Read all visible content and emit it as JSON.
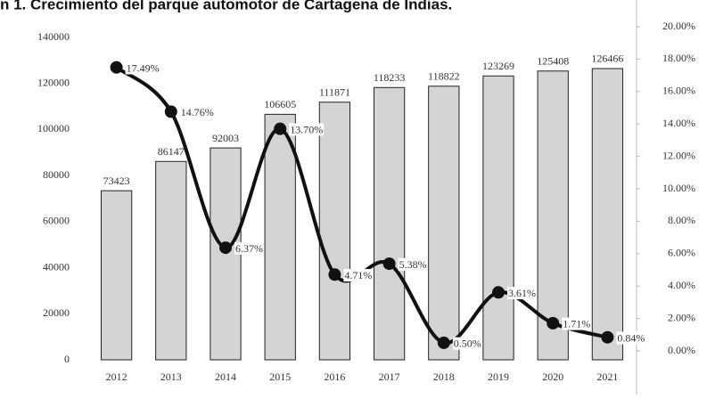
{
  "chart_data": {
    "type": "bar",
    "title": "n 1. Crecimiento del parque automotor de Cartagena de Indias.",
    "categories": [
      "2012",
      "2013",
      "2014",
      "2015",
      "2016",
      "2017",
      "2018",
      "2019",
      "2020",
      "2021"
    ],
    "series": [
      {
        "type": "bar",
        "color": "#d4d4d4",
        "values": [
          73423,
          86147,
          92003,
          106605,
          111871,
          118233,
          118822,
          123269,
          125408,
          126466
        ]
      },
      {
        "type": "line",
        "axis": "y2",
        "color": "#111111",
        "values": [
          17.49,
          14.76,
          6.37,
          13.7,
          4.71,
          5.38,
          0.5,
          3.61,
          1.71,
          0.84
        ],
        "value_labels": [
          "17.49%",
          "14.76%",
          "6.37%",
          "13.70%",
          "4.71%",
          "5.38%",
          "0.50%",
          "3.61%",
          "1.71%",
          "0.84%"
        ]
      }
    ],
    "ylim": [
      0,
      140000
    ],
    "yticks": [
      0,
      20000,
      40000,
      60000,
      80000,
      100000,
      120000,
      140000
    ],
    "y2lim": [
      0,
      20
    ],
    "y2ticks": [
      {
        "value": 0,
        "label": "0.00%"
      },
      {
        "value": 2,
        "label": "2.00%"
      },
      {
        "value": 4,
        "label": "4.00%"
      },
      {
        "value": 6,
        "label": "6.00%"
      },
      {
        "value": 8,
        "label": "8.00%"
      },
      {
        "value": 10,
        "label": "10.00%"
      },
      {
        "value": 12,
        "label": "12.00%"
      },
      {
        "value": 14,
        "label": "14.00%"
      },
      {
        "value": 16,
        "label": "16.00%"
      },
      {
        "value": 18,
        "label": "18.00%"
      },
      {
        "value": 20,
        "label": "20.00%"
      }
    ]
  }
}
